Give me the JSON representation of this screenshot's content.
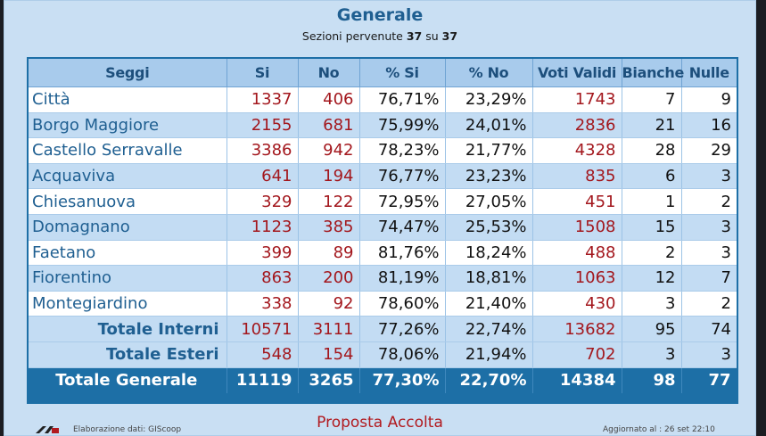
{
  "header": {
    "title": "Generale",
    "subtitle_prefix": "Sezioni pervenute",
    "sections_received": "37",
    "subtitle_mid": "su",
    "sections_total": "37"
  },
  "table": {
    "columns": [
      "Seggi",
      "Si",
      "No",
      "% Si",
      "% No",
      "Voti Validi",
      "Bianche",
      "Nulle"
    ],
    "rows": [
      [
        "Città",
        "1337",
        "406",
        "76,71%",
        "23,29%",
        "1743",
        "7",
        "9"
      ],
      [
        "Borgo Maggiore",
        "2155",
        "681",
        "75,99%",
        "24,01%",
        "2836",
        "21",
        "16"
      ],
      [
        "Castello Serravalle",
        "3386",
        "942",
        "78,23%",
        "21,77%",
        "4328",
        "28",
        "29"
      ],
      [
        "Acquaviva",
        "641",
        "194",
        "76,77%",
        "23,23%",
        "835",
        "6",
        "3"
      ],
      [
        "Chiesanuova",
        "329",
        "122",
        "72,95%",
        "27,05%",
        "451",
        "1",
        "2"
      ],
      [
        "Domagnano",
        "1123",
        "385",
        "74,47%",
        "25,53%",
        "1508",
        "15",
        "3"
      ],
      [
        "Faetano",
        "399",
        "89",
        "81,76%",
        "18,24%",
        "488",
        "2",
        "3"
      ],
      [
        "Fiorentino",
        "863",
        "200",
        "81,19%",
        "18,81%",
        "1063",
        "12",
        "7"
      ],
      [
        "Montegiardino",
        "338",
        "92",
        "78,60%",
        "21,40%",
        "430",
        "3",
        "2"
      ]
    ],
    "totale_interni": [
      "Totale Interni",
      "10571",
      "3111",
      "77,26%",
      "22,74%",
      "13682",
      "95",
      "74"
    ],
    "totale_esteri": [
      "Totale Esteri",
      "548",
      "154",
      "78,06%",
      "21,94%",
      "702",
      "3",
      "3"
    ],
    "totale_generale": [
      "Totale Generale",
      "11119",
      "3265",
      "77,30%",
      "22,70%",
      "14384",
      "98",
      "77"
    ]
  },
  "footer": {
    "left_text": "Elaborazione dati: GIScoop",
    "result": "Proposta Accolta",
    "right_text": "Aggiornato al : 26 set 22:10"
  },
  "colors": {
    "accent": "#1d6fa6",
    "title": "#1f5f91",
    "votes_red": "#a3171d",
    "row_alt": "#c3dcf3",
    "panel_bg": "#c9dff3"
  }
}
